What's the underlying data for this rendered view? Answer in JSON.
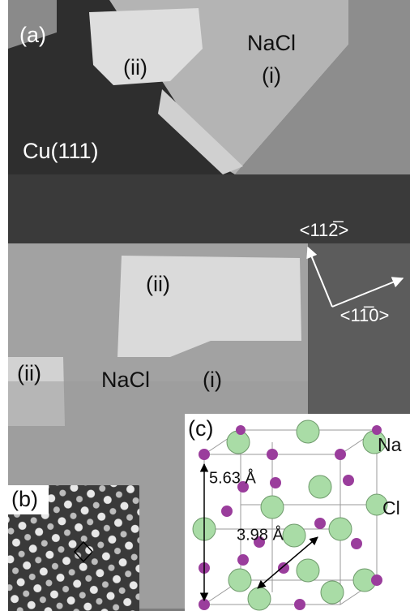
{
  "panels": {
    "a": {
      "label": "(a)",
      "regions": {
        "nacl_top": "NaCl",
        "i_top": "(i)",
        "ii_top": "(ii)",
        "cu": "Cu(111)",
        "ii_mid": "(ii)",
        "ii_left": "(ii)",
        "nacl_bottom": "NaCl",
        "i_bottom": "(i)"
      },
      "directions": [
        "<112̅>",
        "<11̅0>"
      ]
    },
    "b": {
      "label": "(b)"
    },
    "c": {
      "label": "(c)",
      "atoms": [
        "Na",
        "Cl"
      ],
      "lattice_constant": "5.63 Å",
      "nn_distance": "3.98 Å"
    }
  }
}
